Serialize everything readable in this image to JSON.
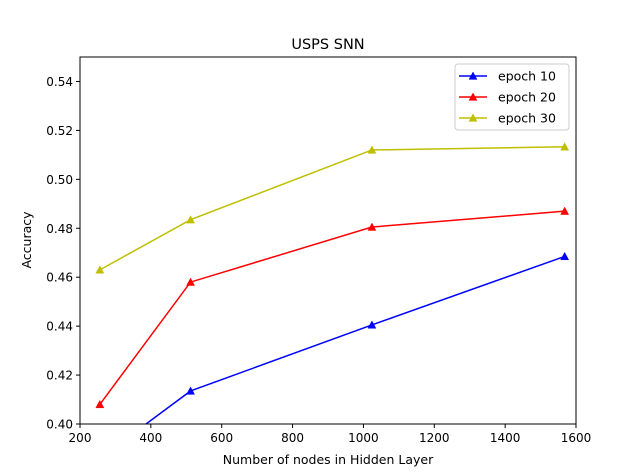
{
  "chart_data": {
    "type": "line",
    "title": "USPS SNN",
    "xlabel": "Number of nodes in Hidden Layer",
    "ylabel": "Accuracy",
    "xlim": [
      200,
      1600
    ],
    "ylim": [
      0.4,
      0.55
    ],
    "xticks": [
      200,
      400,
      600,
      800,
      1000,
      1200,
      1400,
      1600
    ],
    "xtick_labels": [
      "200",
      "400",
      "600",
      "800",
      "1000",
      "1200",
      "1400",
      "1600"
    ],
    "yticks": [
      0.4,
      0.42,
      0.44,
      0.46,
      0.48,
      0.5,
      0.52,
      0.54
    ],
    "ytick_labels": [
      "0.40",
      "0.42",
      "0.44",
      "0.46",
      "0.48",
      "0.50",
      "0.52",
      "0.54"
    ],
    "x": [
      256,
      512,
      1024,
      1568
    ],
    "grid": false,
    "legend_position": "top-right",
    "series": [
      {
        "name": "epoch 10",
        "color": "#0000ff",
        "marker": "triangle-up",
        "values": [
          0.386,
          0.4135,
          0.4405,
          0.4685
        ]
      },
      {
        "name": "epoch 20",
        "color": "#ff0000",
        "marker": "triangle-up",
        "values": [
          0.408,
          0.458,
          0.4805,
          0.487
        ]
      },
      {
        "name": "epoch 30",
        "color": "#bfbf00",
        "marker": "triangle-up",
        "values": [
          0.463,
          0.4835,
          0.512,
          0.5133
        ]
      }
    ]
  }
}
